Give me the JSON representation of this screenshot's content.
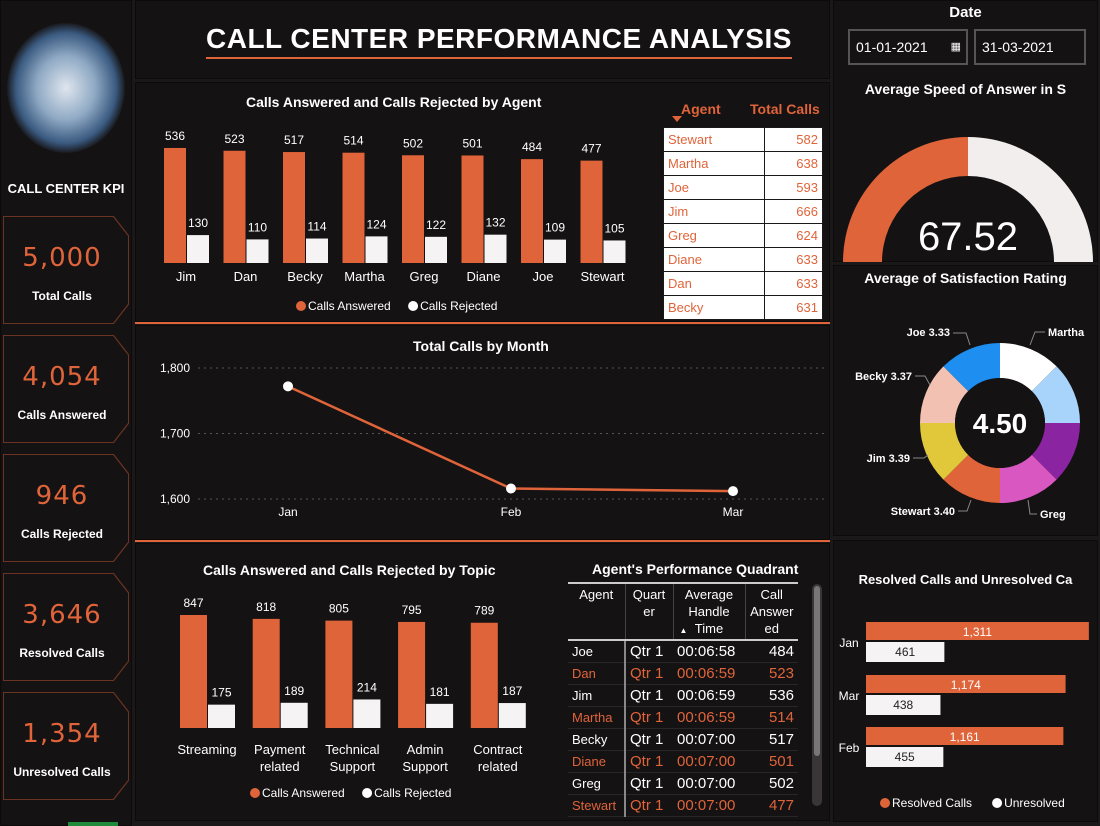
{
  "title": "CALL CENTER PERFORMANCE ANALYSIS",
  "colors": {
    "accent": "#e0643a",
    "secondary": "#f5f3f3",
    "background": "#151213"
  },
  "kpi": {
    "header": "CALL CENTER KPI",
    "cards": [
      {
        "value": "5,000",
        "label": "Total Calls"
      },
      {
        "value": "4,054",
        "label": "Calls Answered"
      },
      {
        "value": "946",
        "label": "Calls Rejected"
      },
      {
        "value": "3,646",
        "label": "Resolved Calls"
      },
      {
        "value": "1,354",
        "label": "Unresolved Calls"
      }
    ]
  },
  "date": {
    "label": "Date",
    "start": "01-01-2021",
    "end": "31-03-2021"
  },
  "agent_table": {
    "headers": [
      "Agent",
      "Total Calls"
    ],
    "rows": [
      [
        "Stewart",
        "582"
      ],
      [
        "Martha",
        "638"
      ],
      [
        "Joe",
        "593"
      ],
      [
        "Jim",
        "666"
      ],
      [
        "Greg",
        "624"
      ],
      [
        "Diane",
        "633"
      ],
      [
        "Dan",
        "633"
      ],
      [
        "Becky",
        "631"
      ]
    ]
  },
  "gauge": {
    "title": "Average Speed of Answer in S",
    "value": "67.52",
    "fill": 0.5
  },
  "donut": {
    "title": "Average of Satisfaction Rating",
    "center": "4.50",
    "labels": [
      {
        "text": "Joe 3.33"
      },
      {
        "text": "Becky 3.37"
      },
      {
        "text": "Jim 3.39"
      },
      {
        "text": "Stewart 3.40"
      },
      {
        "text": "Martha"
      },
      {
        "text": "Greg"
      }
    ],
    "segment_colors": [
      "#ffffff",
      "#a8d4fb",
      "#8a24a0",
      "#d957c0",
      "#e0643a",
      "#e0c83a",
      "#f2c1b2",
      "#1e8ef0"
    ]
  },
  "quadrant": {
    "title": "Agent's Performance Quadrant",
    "headers": [
      "Agent",
      "Quart er",
      "Average Handle Time",
      "Call Answer ed"
    ],
    "rows": [
      [
        "Joe",
        "Qtr 1",
        "00:06:58",
        "484"
      ],
      [
        "Dan",
        "Qtr 1",
        "00:06:59",
        "523"
      ],
      [
        "Jim",
        "Qtr 1",
        "00:06:59",
        "536"
      ],
      [
        "Martha",
        "Qtr 1",
        "00:06:59",
        "514"
      ],
      [
        "Becky",
        "Qtr 1",
        "00:07:00",
        "517"
      ],
      [
        "Diane",
        "Qtr 1",
        "00:07:00",
        "501"
      ],
      [
        "Greg",
        "Qtr 1",
        "00:07:00",
        "502"
      ],
      [
        "Stewart",
        "Qtr 1",
        "00:07:00",
        "477"
      ]
    ]
  },
  "chart_data": [
    {
      "type": "bar",
      "title": "Calls Answered and Calls Rejected by Agent",
      "categories": [
        "Jim",
        "Dan",
        "Becky",
        "Martha",
        "Greg",
        "Diane",
        "Joe",
        "Stewart"
      ],
      "series": [
        {
          "name": "Calls Answered",
          "values": [
            536,
            523,
            517,
            514,
            502,
            501,
            484,
            477
          ]
        },
        {
          "name": "Calls Rejected",
          "values": [
            130,
            110,
            114,
            124,
            122,
            132,
            109,
            105
          ]
        }
      ],
      "legend": "bottom"
    },
    {
      "type": "line",
      "title": "Total Calls by Month",
      "categories": [
        "Jan",
        "Feb",
        "Mar"
      ],
      "values": [
        1772,
        1616,
        1612
      ],
      "ylim": [
        1600,
        1800
      ],
      "yticks": [
        "1,600",
        "1,700",
        "1,800"
      ],
      "grid": true
    },
    {
      "type": "bar",
      "title": "Calls Answered and Calls Rejected by Topic",
      "categories": [
        "Streaming",
        "Payment related",
        "Technical Support",
        "Admin Support",
        "Contract related"
      ],
      "series": [
        {
          "name": "Calls Answered",
          "values": [
            847,
            818,
            805,
            795,
            789
          ]
        },
        {
          "name": "Calls Rejected",
          "values": [
            175,
            189,
            214,
            181,
            187
          ]
        }
      ],
      "legend": "bottom"
    },
    {
      "type": "bar",
      "orientation": "horizontal",
      "title": "Resolved Calls and Unresolved Ca",
      "categories": [
        "Jan",
        "Mar",
        "Feb"
      ],
      "series": [
        {
          "name": "Resolved Calls",
          "values": [
            1311,
            1174,
            1161
          ],
          "labels": [
            "1,311",
            "1,174",
            "1,161"
          ]
        },
        {
          "name": "Unresolved",
          "values": [
            461,
            438,
            455
          ],
          "labels": [
            "461",
            "438",
            "455"
          ]
        }
      ],
      "legend": "bottom"
    }
  ]
}
